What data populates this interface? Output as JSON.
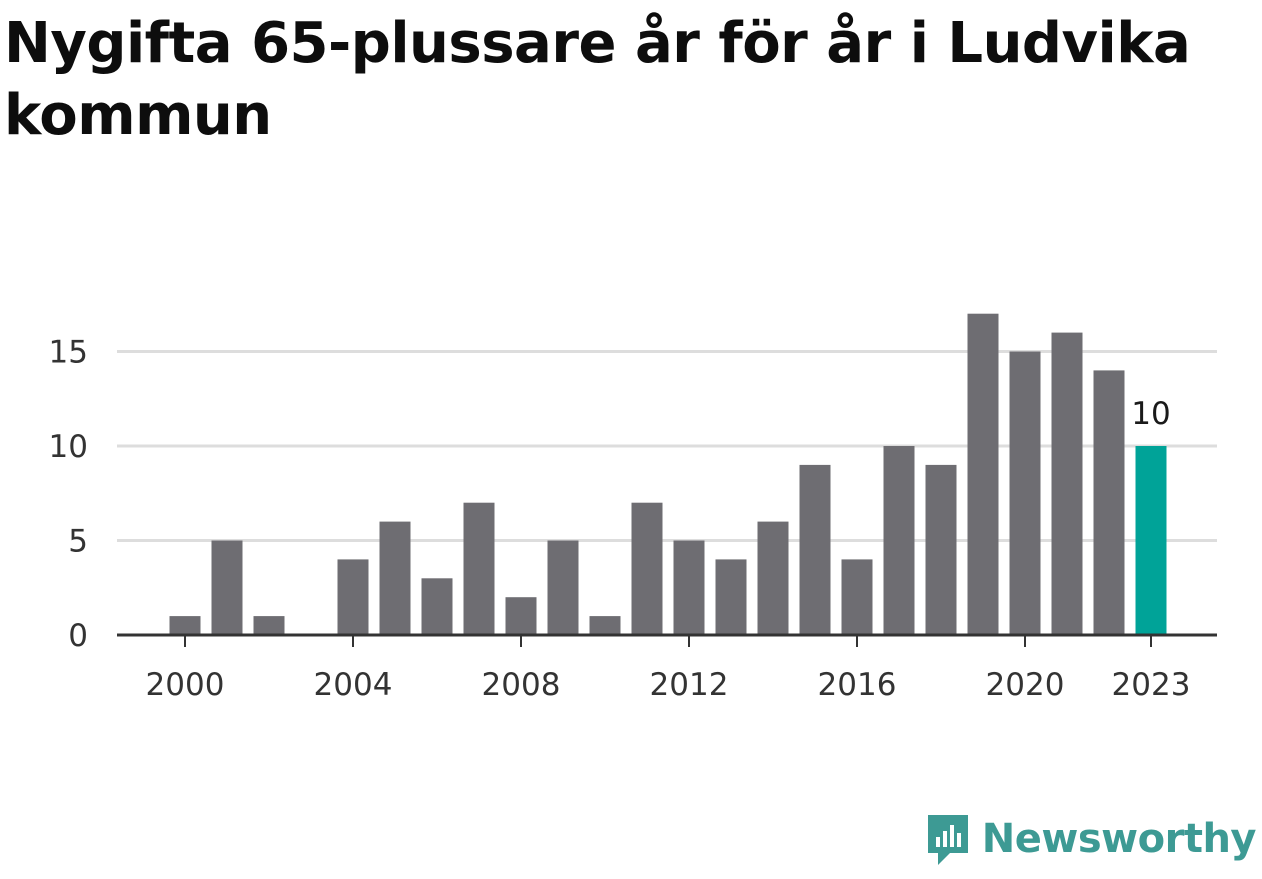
{
  "title": "Nygifta 65-plussare år för år i Ludvika kommun",
  "brand": {
    "name": "Newsworthy",
    "icon": "newsworthy-logo-icon",
    "color": "#3d9a94"
  },
  "colors": {
    "bar": "#6e6d72",
    "highlight": "#00a398",
    "grid": "#dddddd",
    "axis": "#333333"
  },
  "chart_data": {
    "type": "bar",
    "x": [
      2000,
      2001,
      2002,
      2003,
      2004,
      2005,
      2006,
      2007,
      2008,
      2009,
      2010,
      2011,
      2012,
      2013,
      2014,
      2015,
      2016,
      2017,
      2018,
      2019,
      2020,
      2021,
      2022,
      2023
    ],
    "values": [
      1,
      5,
      1,
      0,
      4,
      6,
      3,
      7,
      2,
      5,
      1,
      7,
      5,
      4,
      6,
      9,
      4,
      10,
      9,
      17,
      15,
      16,
      14,
      10
    ],
    "x_tick_labels": [
      "2000",
      "2004",
      "2008",
      "2012",
      "2016",
      "2020",
      "2023"
    ],
    "y_ticks": [
      0,
      5,
      10,
      15
    ],
    "ylim": [
      0,
      17
    ],
    "highlight": {
      "x": 2023,
      "label": "10"
    },
    "grid": true,
    "legend": "none"
  }
}
